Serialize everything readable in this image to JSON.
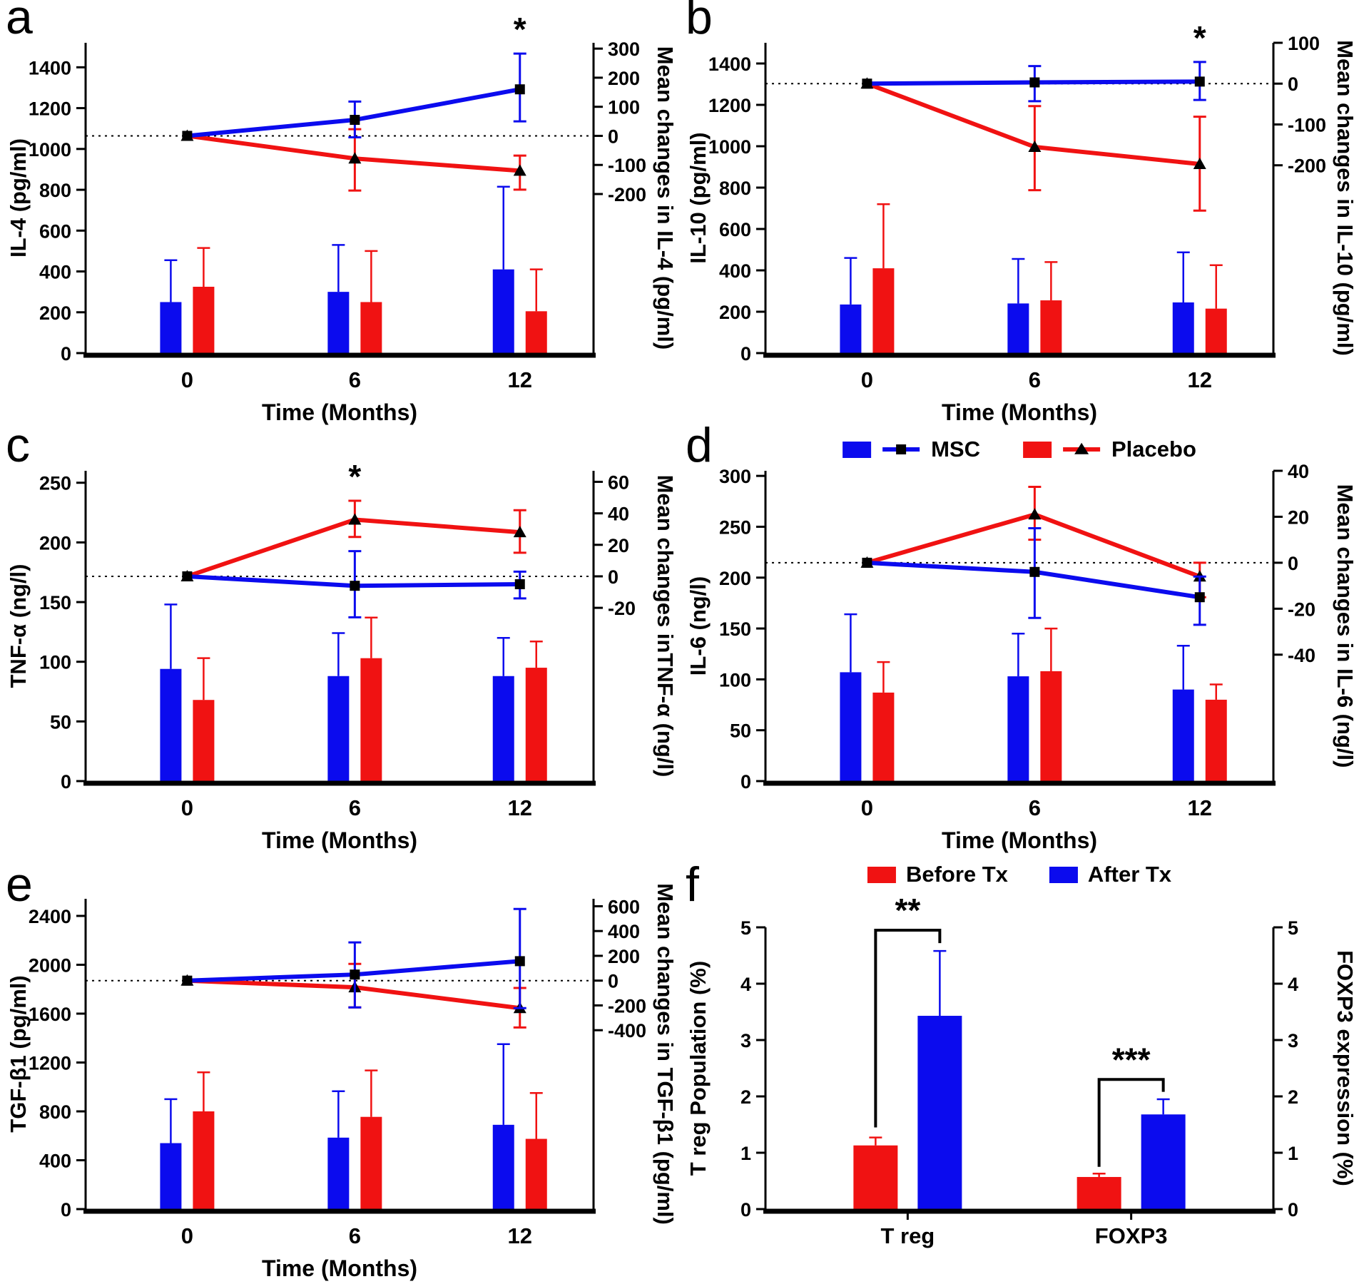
{
  "colors": {
    "blue": "#0b0bee",
    "red": "#f01212",
    "black": "#000000"
  },
  "chart_data": {
    "type": "multi-panel",
    "legends": {
      "line": {
        "items": [
          {
            "label": "MSC",
            "color": "blue",
            "marker": "square"
          },
          {
            "label": "Placebo",
            "color": "red",
            "marker": "triangle"
          }
        ]
      },
      "bar": {
        "items": [
          {
            "label": "Before Tx",
            "color": "red"
          },
          {
            "label": "After Tx",
            "color": "blue"
          }
        ]
      }
    },
    "panels": [
      {
        "letter": "a",
        "type": "dual",
        "x_label": "Time (Months)",
        "categories": [
          "0",
          "6",
          "12"
        ],
        "left_axis": {
          "label": "IL-4 (pg/ml)",
          "min": 0,
          "max": 1520,
          "ticks": [
            0,
            200,
            400,
            600,
            800,
            1000,
            1200,
            1400
          ]
        },
        "right_axis": {
          "label": "Mean changes in IL-4 (pg/ml)",
          "min": -747,
          "max": 320,
          "ticks": [
            300,
            200,
            100,
            0,
            -100,
            -200
          ]
        },
        "bars": [
          {
            "name": "MSC",
            "color": "blue",
            "values": [
              250,
              300,
              410
            ],
            "err_hi": [
              455,
              530,
              815
            ]
          },
          {
            "name": "Placebo",
            "color": "red",
            "values": [
              325,
              250,
              205
            ],
            "err_hi": [
              515,
              500,
              410
            ]
          }
        ],
        "lines": [
          {
            "name": "Placebo",
            "color": "red",
            "marker": "triangle",
            "values": [
              0,
              -78,
              -120
            ],
            "err_lo": [
              0,
              -188,
              -185
            ],
            "err_hi": [
              0,
              23,
              -68
            ]
          },
          {
            "name": "MSC",
            "color": "blue",
            "marker": "square",
            "values": [
              0,
              55,
              160
            ],
            "err_lo": [
              0,
              -5,
              50
            ],
            "err_hi": [
              0,
              118,
              283
            ]
          }
        ],
        "sig": [
          {
            "text": "*",
            "cat": 2,
            "on": "MSC"
          }
        ]
      },
      {
        "letter": "b",
        "type": "dual",
        "x_label": "Time (Months)",
        "categories": [
          "0",
          "6",
          "12"
        ],
        "left_axis": {
          "label": "IL-10 (pg/ml)",
          "min": 0,
          "max": 1500,
          "ticks": [
            0,
            200,
            400,
            600,
            800,
            1000,
            1200,
            1400
          ]
        },
        "right_axis": {
          "label": "Mean changes in IL-10 (pg/ml)",
          "min": -660,
          "max": 100,
          "ticks": [
            100,
            0,
            -100,
            -200
          ]
        },
        "bars": [
          {
            "name": "MSC",
            "color": "blue",
            "values": [
              235,
              240,
              245
            ],
            "err_hi": [
              460,
              455,
              487
            ]
          },
          {
            "name": "Placebo",
            "color": "red",
            "values": [
              410,
              255,
              215
            ],
            "err_hi": [
              720,
              440,
              425
            ]
          }
        ],
        "lines": [
          {
            "name": "Placebo",
            "color": "red",
            "marker": "triangle",
            "values": [
              0,
              -155,
              -197
            ],
            "err_lo": [
              0,
              -261,
              -311
            ],
            "err_hi": [
              0,
              -55,
              -81
            ]
          },
          {
            "name": "MSC",
            "color": "blue",
            "marker": "square",
            "values": [
              0,
              3,
              5
            ],
            "err_lo": [
              0,
              -43,
              -40
            ],
            "err_hi": [
              0,
              43,
              53
            ]
          }
        ],
        "sig": [
          {
            "text": "*",
            "cat": 2,
            "on": "MSC"
          }
        ]
      },
      {
        "letter": "c",
        "type": "dual",
        "x_label": "Time (Months)",
        "categories": [
          "0",
          "6",
          "12"
        ],
        "left_axis": {
          "label": "TNF-α (ng/l)",
          "min": 0,
          "max": 260,
          "ticks": [
            0,
            50,
            100,
            150,
            200,
            250
          ]
        },
        "right_axis": {
          "label": "Mean changes inTNF-α (ng/l)",
          "min": -130,
          "max": 67,
          "ticks": [
            60,
            40,
            20,
            0,
            -20
          ]
        },
        "bars": [
          {
            "name": "MSC",
            "color": "blue",
            "values": [
              94,
              88,
              88
            ],
            "err_hi": [
              148,
              124,
              120
            ]
          },
          {
            "name": "Placebo",
            "color": "red",
            "values": [
              68,
              103,
              95
            ],
            "err_hi": [
              103,
              137,
              117
            ]
          }
        ],
        "lines": [
          {
            "name": "Placebo",
            "color": "red",
            "marker": "triangle",
            "values": [
              0,
              36,
              28
            ],
            "err_lo": [
              0,
              25,
              15
            ],
            "err_hi": [
              0,
              48,
              42
            ]
          },
          {
            "name": "MSC",
            "color": "blue",
            "marker": "square",
            "values": [
              0,
              -6,
              -5
            ],
            "err_lo": [
              0,
              -26,
              -14
            ],
            "err_hi": [
              0,
              16,
              3
            ]
          }
        ],
        "sig": [
          {
            "text": "*",
            "cat": 1,
            "on": "Placebo"
          }
        ]
      },
      {
        "letter": "d",
        "type": "dual",
        "x_label": "Time (Months)",
        "categories": [
          "0",
          "6",
          "12"
        ],
        "left_axis": {
          "label": "IL-6 (ng/l)",
          "min": 0,
          "max": 305,
          "ticks": [
            0,
            50,
            100,
            150,
            200,
            250,
            300
          ]
        },
        "right_axis": {
          "label": "Mean changes in IL-6 (ng/l)",
          "min": -95,
          "max": 40,
          "ticks": [
            40,
            20,
            0,
            -20,
            -40
          ]
        },
        "bars": [
          {
            "name": "MSC",
            "color": "blue",
            "values": [
              107,
              103,
              90
            ],
            "err_hi": [
              164,
              145,
              133
            ]
          },
          {
            "name": "Placebo",
            "color": "red",
            "values": [
              87,
              108,
              80
            ],
            "err_hi": [
              117,
              150,
              95
            ]
          }
        ],
        "lines": [
          {
            "name": "Placebo",
            "color": "red",
            "marker": "triangle",
            "values": [
              0,
              21,
              -6
            ],
            "err_lo": [
              0,
              10,
              -15
            ],
            "err_hi": [
              0,
              33,
              0
            ]
          },
          {
            "name": "MSC",
            "color": "blue",
            "marker": "square",
            "values": [
              0,
              -4,
              -15
            ],
            "err_lo": [
              0,
              -24,
              -27
            ],
            "err_hi": [
              0,
              15,
              -6
            ]
          }
        ],
        "sig": []
      },
      {
        "letter": "e",
        "type": "dual",
        "x_label": "Time (Months)",
        "categories": [
          "0",
          "6",
          "12"
        ],
        "left_axis": {
          "label": "TGF-β1 (pg/ml)",
          "min": 0,
          "max": 2540,
          "ticks": [
            0,
            400,
            800,
            1200,
            1600,
            2000,
            2400
          ]
        },
        "right_axis": {
          "label": "Mean changes in TGF-β1 (pg/ml)",
          "min": -1843,
          "max": 660,
          "ticks": [
            600,
            400,
            200,
            0,
            -200,
            -400
          ]
        },
        "bars": [
          {
            "name": "MSC",
            "color": "blue",
            "values": [
              540,
              585,
              690
            ],
            "err_hi": [
              900,
              965,
              1350
            ]
          },
          {
            "name": "Placebo",
            "color": "red",
            "values": [
              800,
              755,
              575
            ],
            "err_hi": [
              1120,
              1135,
              950
            ]
          }
        ],
        "lines": [
          {
            "name": "Placebo",
            "color": "red",
            "marker": "triangle",
            "values": [
              0,
              -54,
              -222
            ],
            "err_lo": [
              0,
              -216,
              -378
            ],
            "err_hi": [
              0,
              135,
              -59
            ]
          },
          {
            "name": "MSC",
            "color": "blue",
            "marker": "square",
            "values": [
              0,
              49,
              157
            ],
            "err_lo": [
              0,
              -216,
              -222
            ],
            "err_hi": [
              0,
              308,
              578
            ]
          }
        ],
        "sig": []
      },
      {
        "letter": "f",
        "type": "grouped",
        "categories": [
          "T reg",
          "FOXP3"
        ],
        "left_axis": {
          "label": "T reg Population (%)",
          "min": 0,
          "max": 5,
          "ticks": [
            0,
            1,
            2,
            3,
            4,
            5
          ]
        },
        "right_axis": {
          "label": "FOXP3 expression (%)",
          "min": 0,
          "max": 5,
          "ticks": [
            0,
            1,
            2,
            3,
            4,
            5
          ]
        },
        "bars": [
          {
            "name": "Before Tx",
            "color": "red",
            "values": [
              1.13,
              0.57
            ],
            "err_hi": [
              1.27,
              0.63
            ]
          },
          {
            "name": "After Tx",
            "color": "blue",
            "values": [
              3.43,
              1.68
            ],
            "err_hi": [
              4.58,
              1.95
            ]
          }
        ],
        "brackets": [
          {
            "label": "**",
            "cat": 0,
            "top": 4.95,
            "left_drop_to": 1.45,
            "right_drop_to": 4.72
          },
          {
            "label": "***",
            "cat": 1,
            "top": 2.3,
            "left_drop_to": 0.75,
            "right_drop_to": 2.08
          }
        ]
      }
    ]
  }
}
